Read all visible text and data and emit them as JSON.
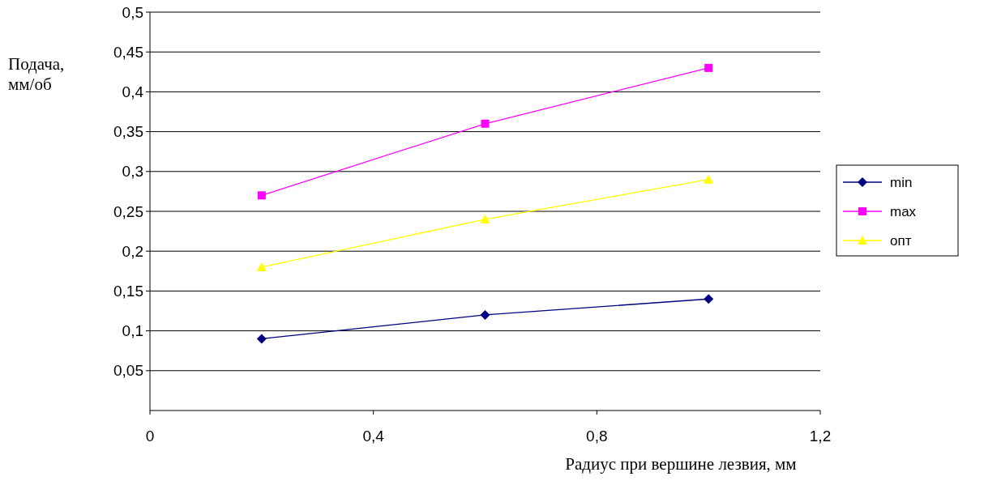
{
  "chart_data": {
    "type": "line",
    "xlabel": "Радиус при вершине лезвия, мм",
    "ylabel": "Подача, мм/об",
    "x": [
      0.2,
      0.6,
      1.0
    ],
    "series": [
      {
        "name": "min",
        "color": "#000080",
        "marker": "diamond",
        "values": [
          0.09,
          0.12,
          0.14
        ]
      },
      {
        "name": "max",
        "color": "#ff00ff",
        "marker": "square",
        "values": [
          0.27,
          0.36,
          0.43
        ]
      },
      {
        "name": "опт",
        "color": "#ffff00",
        "marker": "triangle",
        "values": [
          0.18,
          0.24,
          0.29
        ]
      }
    ],
    "xlim": [
      0,
      1.2
    ],
    "xticks": [
      {
        "value": 0,
        "label": "0"
      },
      {
        "value": 0.4,
        "label": "0,4"
      },
      {
        "value": 0.8,
        "label": "0,8"
      },
      {
        "value": 1.2,
        "label": "1,2"
      }
    ],
    "ylim": [
      0,
      0.5
    ],
    "yticks": [
      {
        "value": 0.05,
        "label": "0,05"
      },
      {
        "value": 0.1,
        "label": "0,1"
      },
      {
        "value": 0.15,
        "label": "0,15"
      },
      {
        "value": 0.2,
        "label": "0,2"
      },
      {
        "value": 0.25,
        "label": "0,25"
      },
      {
        "value": 0.3,
        "label": "0,3"
      },
      {
        "value": 0.35,
        "label": "0,35"
      },
      {
        "value": 0.4,
        "label": "0,4"
      },
      {
        "value": 0.45,
        "label": "0,45"
      },
      {
        "value": 0.5,
        "label": "0,5"
      }
    ],
    "grid": "y",
    "legend": "right",
    "line_style": "solid"
  }
}
